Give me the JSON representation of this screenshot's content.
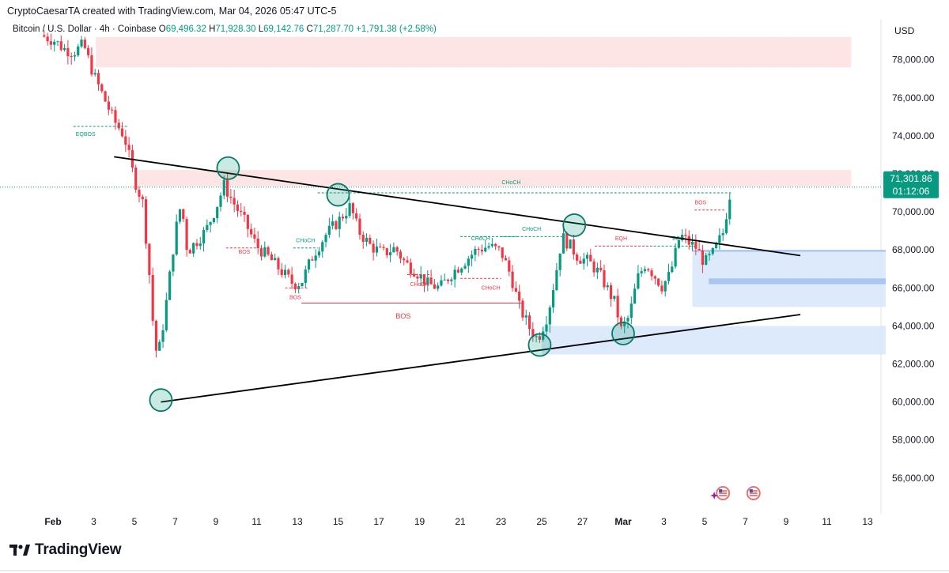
{
  "header": {
    "credit": "CryptoCaesarTA created with TradingView.com, Mar 04, 2026 05:47 UTC-5"
  },
  "legend": {
    "symbol": "Bitcoin / U.S. Dollar · 4h · Coinbase",
    "open_label": "O",
    "open": "69,496.32",
    "high_label": "H",
    "high": "71,928.30",
    "low_label": "L",
    "low": "69,142.76",
    "close_label": "C",
    "close": "71,287.70",
    "change": "+1,791.38 (+2.58%)"
  },
  "currency": "USD",
  "brand": "TradingView",
  "colors": {
    "up": "#089981",
    "down": "#f23645",
    "supply_zone": "#fde0e0",
    "demand_zone": "#d6e6fb",
    "trendline": "#000000",
    "last_price_badge": "#089981"
  },
  "chart_data": {
    "type": "candlestick",
    "timeframe": "4h",
    "y_axis": {
      "ticks": [
        56000,
        58000,
        60000,
        62000,
        64000,
        66000,
        68000,
        70000,
        72000,
        74000,
        76000,
        78000
      ],
      "tick_labels": [
        "56,000.00",
        "58,000.00",
        "60,000.00",
        "62,000.00",
        "64,000.00",
        "66,000.00",
        "68,000.00",
        "70,000.00",
        "72,000.00",
        "74,000.00",
        "76,000.00",
        "78,000.00"
      ],
      "range": [
        54200,
        79800
      ]
    },
    "x_axis": {
      "labels": [
        "Feb",
        "3",
        "5",
        "7",
        "9",
        "11",
        "13",
        "15",
        "17",
        "19",
        "21",
        "23",
        "25",
        "27",
        "Mar",
        "3",
        "5",
        "7",
        "9",
        "11",
        "13"
      ],
      "bold_labels": [
        "Feb",
        "Mar"
      ],
      "day_offsets": [
        0,
        2,
        4,
        6,
        8,
        10,
        12,
        14,
        16,
        18,
        20,
        22,
        24,
        26,
        28,
        30,
        32,
        34,
        36,
        38,
        40
      ]
    },
    "last_price": {
      "value": 71301.86,
      "label": "71,301.86",
      "countdown": "01:12:06"
    },
    "path_anchors": [
      [
        -0.6,
        79300
      ],
      [
        0.1,
        79000
      ],
      [
        0.5,
        78600
      ],
      [
        1.0,
        78400
      ],
      [
        1.5,
        78800
      ],
      [
        2.0,
        77200
      ],
      [
        2.5,
        76000
      ],
      [
        3.0,
        74800
      ],
      [
        3.5,
        74000
      ],
      [
        4.0,
        71700
      ],
      [
        4.4,
        70500
      ],
      [
        4.7,
        67200
      ],
      [
        4.9,
        64300
      ],
      [
        5.05,
        62700
      ],
      [
        5.25,
        62900
      ],
      [
        5.6,
        65500
      ],
      [
        6.0,
        68900
      ],
      [
        6.3,
        70500
      ],
      [
        6.6,
        67900
      ],
      [
        7.0,
        68400
      ],
      [
        7.5,
        69000
      ],
      [
        8.0,
        70200
      ],
      [
        8.4,
        71400
      ],
      [
        8.8,
        70600
      ],
      [
        9.4,
        69500
      ],
      [
        10.0,
        68200
      ],
      [
        10.6,
        67600
      ],
      [
        11.2,
        66900
      ],
      [
        11.8,
        66200
      ],
      [
        12.2,
        66300
      ],
      [
        12.8,
        67800
      ],
      [
        13.4,
        68800
      ],
      [
        14.0,
        69500
      ],
      [
        14.6,
        70300
      ],
      [
        15.0,
        69000
      ],
      [
        15.6,
        68200
      ],
      [
        16.2,
        67800
      ],
      [
        16.8,
        68100
      ],
      [
        17.3,
        67300
      ],
      [
        17.8,
        66900
      ],
      [
        18.4,
        66200
      ],
      [
        19.0,
        66000
      ],
      [
        19.6,
        66800
      ],
      [
        20.2,
        67400
      ],
      [
        20.8,
        68000
      ],
      [
        21.4,
        68200
      ],
      [
        22.0,
        67900
      ],
      [
        22.5,
        66600
      ],
      [
        22.9,
        65000
      ],
      [
        23.4,
        63900
      ],
      [
        23.8,
        63300
      ],
      [
        24.3,
        64600
      ],
      [
        24.7,
        66800
      ],
      [
        25.0,
        68700
      ],
      [
        25.4,
        68200
      ],
      [
        25.8,
        67600
      ],
      [
        26.3,
        67400
      ],
      [
        26.8,
        66800
      ],
      [
        27.2,
        66000
      ],
      [
        27.6,
        65200
      ],
      [
        27.9,
        63800
      ],
      [
        28.3,
        64500
      ],
      [
        28.7,
        66500
      ],
      [
        29.1,
        67300
      ],
      [
        29.5,
        66700
      ],
      [
        29.9,
        66100
      ],
      [
        30.3,
        66700
      ],
      [
        30.8,
        68800
      ],
      [
        31.2,
        68400
      ],
      [
        31.6,
        68100
      ],
      [
        32.0,
        67300
      ],
      [
        32.4,
        67800
      ],
      [
        32.9,
        68900
      ],
      [
        33.3,
        71300
      ]
    ],
    "zones": [
      {
        "kind": "supply",
        "day_from": 2.1,
        "day_to": 39.2,
        "price_from": 77600,
        "price_to": 79200
      },
      {
        "kind": "supply",
        "day_from": 4.2,
        "day_to": 39.2,
        "price_from": 71350,
        "price_to": 72200
      },
      {
        "kind": "demand",
        "day_from": 31.4,
        "day_to": 43.5,
        "price_from": 67900,
        "price_to": 68000
      },
      {
        "kind": "demand",
        "day_from": 31.4,
        "day_to": 43.5,
        "price_from": 65000,
        "price_to": 67900
      },
      {
        "kind": "demand",
        "day_from": 32.2,
        "day_to": 43.5,
        "price_from": 66200,
        "price_to": 66500
      },
      {
        "kind": "demand",
        "day_from": 24.0,
        "day_to": 43.5,
        "price_from": 62500,
        "price_to": 64000
      }
    ],
    "trendlines": [
      {
        "name": "descending-resistance",
        "from": [
          3.0,
          72900
        ],
        "to": [
          36.7,
          67700
        ]
      },
      {
        "name": "ascending-support",
        "from": [
          5.3,
          60000
        ],
        "to": [
          36.7,
          64600
        ]
      }
    ],
    "touch_points": [
      [
        5.3,
        60100
      ],
      [
        8.6,
        72300
      ],
      [
        14.0,
        70900
      ],
      [
        23.9,
        63000
      ],
      [
        25.6,
        69300
      ],
      [
        28.0,
        63600
      ]
    ],
    "structure_levels": [
      {
        "label": "EQBOS",
        "color": "up",
        "day_from": 1.0,
        "day_to": 3.7,
        "price": 74500,
        "label_day": 1.6,
        "label_price": 74000
      },
      {
        "label": "BOS",
        "color": "down",
        "day_from": 8.5,
        "day_to": 10.0,
        "price": 68100,
        "label_day": 9.4,
        "label_price": 67800
      },
      {
        "label": "CHoCH",
        "color": "up",
        "day_from": 11.8,
        "day_to": 13.0,
        "price": 68100,
        "label_day": 12.4,
        "label_price": 68400
      },
      {
        "label": "BOS",
        "color": "down",
        "day_from": 11.4,
        "day_to": 12.5,
        "price": 66000,
        "label_day": 11.9,
        "label_price": 65400
      },
      {
        "label": "BOS",
        "color": "down",
        "day_from": 12.2,
        "day_to": 23.0,
        "price": 65200,
        "label_day": 17.2,
        "label_price": 64400
      },
      {
        "label": "CHoCH",
        "color": "down",
        "day_from": 17.4,
        "day_to": 18.6,
        "price": 66700,
        "label_day": 18.0,
        "label_price": 66100
      },
      {
        "label": "CHoCH",
        "color": "up",
        "day_from": 20.0,
        "day_to": 22.8,
        "price": 68700,
        "label_day": 21.0,
        "label_price": 68500
      },
      {
        "label": "CHoCH",
        "color": "down",
        "day_from": 20.0,
        "day_to": 22.0,
        "price": 66500,
        "label_day": 21.5,
        "label_price": 65900
      },
      {
        "label": "CHoCH",
        "color": "up",
        "day_from": 22.0,
        "day_to": 25.0,
        "price": 68700,
        "label_day": 23.5,
        "label_price": 69000
      },
      {
        "label": "EQH",
        "color": "down",
        "day_from": 26.6,
        "day_to": 29.5,
        "price": 68200,
        "label_day": 27.9,
        "label_price": 68500
      },
      {
        "label": "BOS",
        "color": "up",
        "day_from": 29.5,
        "day_to": 31.6,
        "price": 68200,
        "label_day": 30.7,
        "label_price": 68500
      },
      {
        "label": "CHoCH",
        "color": "up",
        "day_from": 13.0,
        "day_to": 33.3,
        "price": 71000,
        "label_day": 22.5,
        "label_price": 71450
      },
      {
        "label": "BOS",
        "color": "down",
        "day_from": 31.5,
        "day_to": 33.0,
        "price": 70100,
        "label_day": 31.8,
        "label_price": 70400
      }
    ],
    "event_icons": [
      {
        "day": 32.9,
        "price": 55200
      },
      {
        "day": 34.4,
        "price": 55200
      }
    ]
  }
}
